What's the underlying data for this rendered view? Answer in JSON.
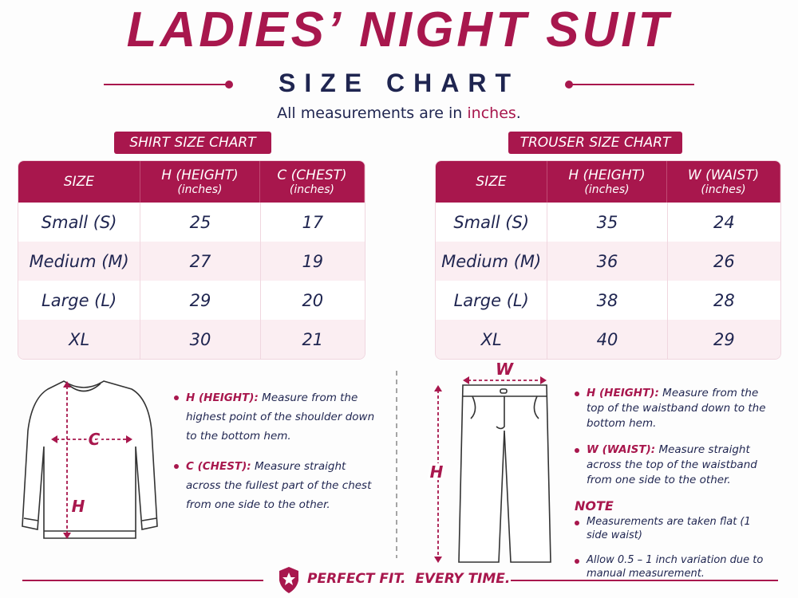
{
  "header": {
    "title": "LADIES’ NIGHT SUIT",
    "subtitle": "SIZE CHART",
    "note_prefix": "All measurements are in",
    "note_unit": "inches",
    "note_suffix": "."
  },
  "shirt_table": {
    "title": "SHIRT SIZE CHART",
    "headers": [
      {
        "label": "SIZE"
      },
      {
        "label": "H (HEIGHT)",
        "unit": "(inches)"
      },
      {
        "label": "C (CHEST)",
        "unit": "(inches)"
      }
    ],
    "rows": [
      [
        "Small (S)",
        25,
        17
      ],
      [
        "Medium (M)",
        27,
        19
      ],
      [
        "Large (L)",
        29,
        20
      ],
      [
        "XL",
        30,
        21
      ]
    ]
  },
  "trouser_table": {
    "title": "TROUSER SIZE CHART",
    "headers": [
      {
        "label": "SIZE"
      },
      {
        "label": "H (HEIGHT)",
        "unit": "(inches)"
      },
      {
        "label": "W (WAIST)",
        "unit": "(inches)"
      }
    ],
    "rows": [
      [
        "Small (S)",
        35,
        24
      ],
      [
        "Medium (M)",
        36,
        26
      ],
      [
        "Large (L)",
        38,
        28
      ],
      [
        "XL",
        40,
        29
      ]
    ]
  },
  "shirt_guide": {
    "labels": {
      "chest": "C",
      "height": "H"
    },
    "items": [
      {
        "term": "H (HEIGHT):",
        "text": "Measure from the highest point of the shoulder down to the bottom hem."
      },
      {
        "term": "C (CHEST):",
        "text": "Measure straight across the fullest part of the chest from one side to the other."
      }
    ]
  },
  "trouser_guide": {
    "labels": {
      "waist": "W",
      "height": "H"
    },
    "items": [
      {
        "term": "H (HEIGHT):",
        "text": "Measure from the top of the waistband down to the bottom hem."
      },
      {
        "term": "W (WAIST):",
        "text": "Measure straight across the top of the waistband from one side to the other."
      }
    ],
    "note": {
      "title": "NOTE",
      "items": [
        "Measurements are taken flat (1 side waist)",
        "Allow 0.5 – 1 inch variation due to manual measurement."
      ]
    }
  },
  "footer": {
    "text": "PERFECT FIT.  EVERY TIME."
  }
}
